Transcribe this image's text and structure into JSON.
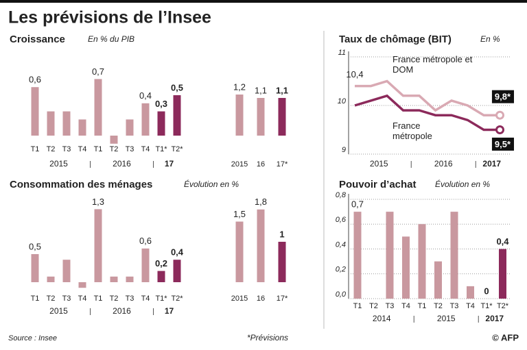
{
  "header": {
    "title": "Les prévisions de l’Insee"
  },
  "footer": {
    "source": "Source : Insee",
    "note": "*Prévisions",
    "credit": "© AFP"
  },
  "chart_data": [
    {
      "type": "bar",
      "title": "Croissance",
      "subtitle": "En % du PIB",
      "categories": [
        "T1",
        "T2",
        "T3",
        "T4",
        "T1",
        "T2",
        "T3",
        "T4",
        "T1*",
        "T2*"
      ],
      "groups": [
        "2015",
        "2016",
        "17"
      ],
      "values": [
        0.6,
        0.3,
        0.3,
        0.2,
        0.7,
        -0.1,
        0.2,
        0.4,
        0.3,
        0.5
      ],
      "value_labels": [
        "0,6",
        null,
        null,
        null,
        "0,7",
        null,
        null,
        "0,4",
        "0,3",
        "0,5"
      ],
      "colors": [
        "#c9989f",
        "#c9989f",
        "#c9989f",
        "#c9989f",
        "#c9989f",
        "#c9989f",
        "#c9989f",
        "#c9989f",
        "#8c2a5b",
        "#8c2a5b"
      ]
    },
    {
      "type": "bar",
      "categories": [
        "2015",
        "16",
        "17*"
      ],
      "values": [
        1.2,
        1.1,
        1.1
      ],
      "value_labels": [
        "1,2",
        "1,1",
        "1,1"
      ],
      "colors": [
        "#c9989f",
        "#c9989f",
        "#8c2a5b"
      ]
    },
    {
      "type": "bar",
      "title": "Consommation des ménages",
      "subtitle": "Évolution en %",
      "categories": [
        "T1",
        "T2",
        "T3",
        "T4",
        "T1",
        "T2",
        "T3",
        "T4",
        "T1*",
        "T2*"
      ],
      "groups": [
        "2015",
        "2016",
        "17"
      ],
      "values": [
        0.5,
        0.1,
        0.4,
        -0.1,
        1.3,
        0.1,
        0.1,
        0.6,
        0.2,
        0.4
      ],
      "value_labels": [
        "0,5",
        null,
        null,
        null,
        "1,3",
        null,
        null,
        "0,6",
        "0,2",
        "0,4"
      ],
      "colors": [
        "#c9989f",
        "#c9989f",
        "#c9989f",
        "#c9989f",
        "#c9989f",
        "#c9989f",
        "#c9989f",
        "#c9989f",
        "#8c2a5b",
        "#8c2a5b"
      ]
    },
    {
      "type": "bar",
      "categories": [
        "2015",
        "16",
        "17*"
      ],
      "values": [
        1.5,
        1.8,
        1
      ],
      "value_labels": [
        "1,5",
        "1,8",
        "1"
      ],
      "colors": [
        "#c9989f",
        "#c9989f",
        "#8c2a5b"
      ]
    },
    {
      "type": "line",
      "title": "Taux de chômage (BIT)",
      "subtitle": "En %",
      "categories": [
        null,
        null,
        null,
        null,
        null,
        null,
        null,
        null,
        null,
        null
      ],
      "groups": [
        "2015",
        "2016",
        "2017"
      ],
      "ylim": [
        9,
        11
      ],
      "yticks": [
        9,
        10,
        11
      ],
      "grid": true,
      "series": [
        {
          "name": "France métropole et DOM",
          "color": "#d9a9b3",
          "values": [
            10.4,
            10.4,
            10.5,
            10.2,
            10.2,
            9.9,
            10.1,
            10.0,
            9.8,
            9.8
          ],
          "value_labels": [
            "10,4",
            null,
            null,
            null,
            null,
            null,
            null,
            null,
            null,
            "9,8*"
          ]
        },
        {
          "name": "France métropole",
          "color": "#8c2a5b",
          "values": [
            10.0,
            10.1,
            10.2,
            9.9,
            9.9,
            9.8,
            9.8,
            9.7,
            9.5,
            9.5
          ],
          "value_labels": [
            null,
            null,
            null,
            null,
            null,
            null,
            null,
            null,
            null,
            "9,5*"
          ]
        }
      ]
    },
    {
      "type": "bar",
      "title": "Pouvoir d’achat",
      "subtitle": "Évolution en %",
      "categories": [
        "T1",
        "T2",
        "T3",
        "T4",
        "T1",
        "T2",
        "T3",
        "T4",
        "T1*",
        "T2*"
      ],
      "groups": [
        "2014",
        "2015",
        "2017"
      ],
      "ylim": [
        0,
        0.8
      ],
      "grid": true,
      "yticks": [
        {
          "value": 0,
          "label": "0,0"
        },
        {
          "value": 0.2,
          "label": "0,2"
        },
        {
          "value": 0.4,
          "label": "0,4"
        },
        {
          "value": 0.6,
          "label": "0,6"
        },
        {
          "value": 0.8,
          "label": "0,8"
        }
      ],
      "values": [
        0.7,
        0,
        0.7,
        0.5,
        0.6,
        0.3,
        0.7,
        0.1,
        0,
        0.4
      ],
      "value_labels": [
        "0,7",
        null,
        null,
        null,
        null,
        null,
        null,
        null,
        "0",
        "0,4"
      ],
      "colors": [
        "#c9989f",
        "#c9989f",
        "#c9989f",
        "#c9989f",
        "#c9989f",
        "#c9989f",
        "#c9989f",
        "#c9989f",
        "#8c2a5b",
        "#8c2a5b"
      ]
    }
  ]
}
